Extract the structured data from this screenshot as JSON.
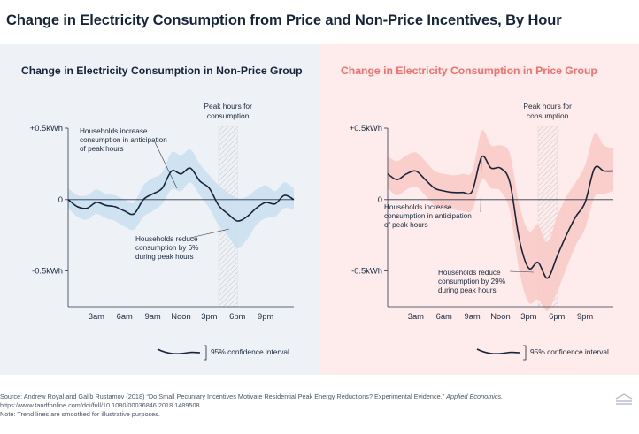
{
  "title": "Change in Electricity Consumption from Price and Non-Price Incentives, By Hour",
  "colors": {
    "dark_line": "#16253b",
    "left_band": "#c9dff0",
    "right_band": "#f9c9c6",
    "left_title": "#16243a",
    "right_title": "#ef6f6c",
    "axis_text": "#1b2a3f"
  },
  "chart_data": [
    {
      "type": "line",
      "title": "Change in Electricity Consumption in Non-Price Group",
      "x_ticks": [
        "3am",
        "6am",
        "9am",
        "Noon",
        "3pm",
        "6pm",
        "9pm"
      ],
      "x_tick_hours": [
        3,
        6,
        9,
        12,
        15,
        18,
        21
      ],
      "y_ticks": [
        "+0.5kWh",
        "0",
        "-0.5kWh"
      ],
      "y_tick_values": [
        0.5,
        0,
        -0.5
      ],
      "xlim": [
        0,
        24
      ],
      "ylim": [
        -0.75,
        0.5
      ],
      "peak_hours": [
        16,
        18
      ],
      "peak_label": [
        "Peak hours for",
        "consumption"
      ],
      "series": [
        {
          "name": "Non-Price Group",
          "x": [
            0,
            1,
            2,
            3,
            4,
            5,
            6,
            7,
            8,
            9,
            10,
            11,
            12,
            13,
            14,
            15,
            16,
            17,
            18,
            19,
            20,
            21,
            22,
            23,
            24
          ],
          "values": [
            0.0,
            -0.05,
            -0.06,
            -0.02,
            -0.04,
            -0.05,
            -0.08,
            -0.1,
            0.0,
            0.04,
            0.08,
            0.2,
            0.18,
            0.22,
            0.13,
            0.08,
            -0.04,
            -0.1,
            -0.15,
            -0.12,
            -0.06,
            -0.02,
            -0.03,
            0.03,
            0.0
          ],
          "ci_lower": [
            -0.06,
            -0.12,
            -0.14,
            -0.1,
            -0.13,
            -0.15,
            -0.19,
            -0.21,
            -0.12,
            -0.08,
            -0.03,
            0.07,
            0.06,
            0.12,
            0.03,
            -0.06,
            -0.18,
            -0.25,
            -0.34,
            -0.28,
            -0.18,
            -0.13,
            -0.12,
            -0.06,
            -0.07
          ],
          "ci_upper": [
            0.08,
            0.03,
            0.03,
            0.07,
            0.04,
            0.03,
            0.0,
            -0.02,
            0.1,
            0.15,
            0.19,
            0.33,
            0.31,
            0.35,
            0.25,
            0.17,
            0.1,
            0.05,
            0.01,
            0.02,
            0.07,
            0.1,
            0.06,
            0.12,
            0.08
          ]
        }
      ],
      "annotations": [
        {
          "lines": [
            "Households increase",
            "consumption in anticipation",
            "of peak hours"
          ]
        },
        {
          "lines": [
            "Households reduce",
            "consumption by 6%",
            "during peak hours"
          ]
        }
      ],
      "legend": "95% confidence interval"
    },
    {
      "type": "line",
      "title": "Change in Electricity Consumption in Price Group",
      "x_ticks": [
        "3am",
        "6am",
        "9am",
        "Noon",
        "3pm",
        "6pm",
        "9pm"
      ],
      "x_tick_hours": [
        3,
        6,
        9,
        12,
        15,
        18,
        21
      ],
      "y_ticks": [
        "+0.5kWh",
        "0",
        "-0.5kWh"
      ],
      "y_tick_values": [
        0.5,
        0,
        -0.5
      ],
      "xlim": [
        0,
        24
      ],
      "ylim": [
        -0.75,
        0.5
      ],
      "peak_hours": [
        16,
        18
      ],
      "peak_label": [
        "Peak hours for",
        "consumption"
      ],
      "series": [
        {
          "name": "Price Group",
          "x": [
            0,
            1,
            2,
            3,
            4,
            5,
            6,
            7,
            8,
            9,
            10,
            11,
            12,
            13,
            14,
            15,
            16,
            17,
            18,
            19,
            20,
            21,
            22,
            23,
            24
          ],
          "values": [
            0.18,
            0.14,
            0.18,
            0.2,
            0.14,
            0.08,
            0.06,
            0.05,
            0.05,
            0.06,
            0.3,
            0.22,
            0.22,
            0.12,
            -0.28,
            -0.48,
            -0.44,
            -0.55,
            -0.4,
            -0.25,
            -0.12,
            -0.02,
            0.22,
            0.2,
            0.2
          ],
          "ci_lower": [
            0.08,
            0.03,
            0.07,
            0.09,
            0.03,
            -0.04,
            -0.06,
            -0.07,
            -0.08,
            -0.07,
            0.14,
            0.08,
            0.06,
            -0.08,
            -0.5,
            -0.72,
            -0.7,
            -0.78,
            -0.65,
            -0.48,
            -0.32,
            -0.2,
            0.02,
            0.04,
            0.06
          ],
          "ci_upper": [
            0.3,
            0.27,
            0.31,
            0.33,
            0.27,
            0.2,
            0.18,
            0.17,
            0.18,
            0.2,
            0.48,
            0.38,
            0.38,
            0.32,
            -0.04,
            -0.22,
            -0.18,
            -0.3,
            -0.12,
            0.02,
            0.12,
            0.24,
            0.46,
            0.38,
            0.36
          ]
        }
      ],
      "annotations": [
        {
          "lines": [
            "Households increase",
            "consumption in anticipation",
            "of peak hours"
          ]
        },
        {
          "lines": [
            "Households reduce",
            "consumption by 29%",
            "during peak hours"
          ]
        }
      ],
      "legend": "95% confidence interval"
    }
  ],
  "footer": {
    "source_prefix": "Source: Andrew Royal and Galib Rustamov (2018) “Do Small Pecuniary Incentives Motivate Residential Peak Energy Reductions? Experimental Evidence.” ",
    "source_journal": "Applied Economics.",
    "url": "https://www.tandfonline.com/doi/full/10.1080/00036846.2018.1489508",
    "note": "Note: Trend lines are smoothed for illustrative purposes."
  }
}
